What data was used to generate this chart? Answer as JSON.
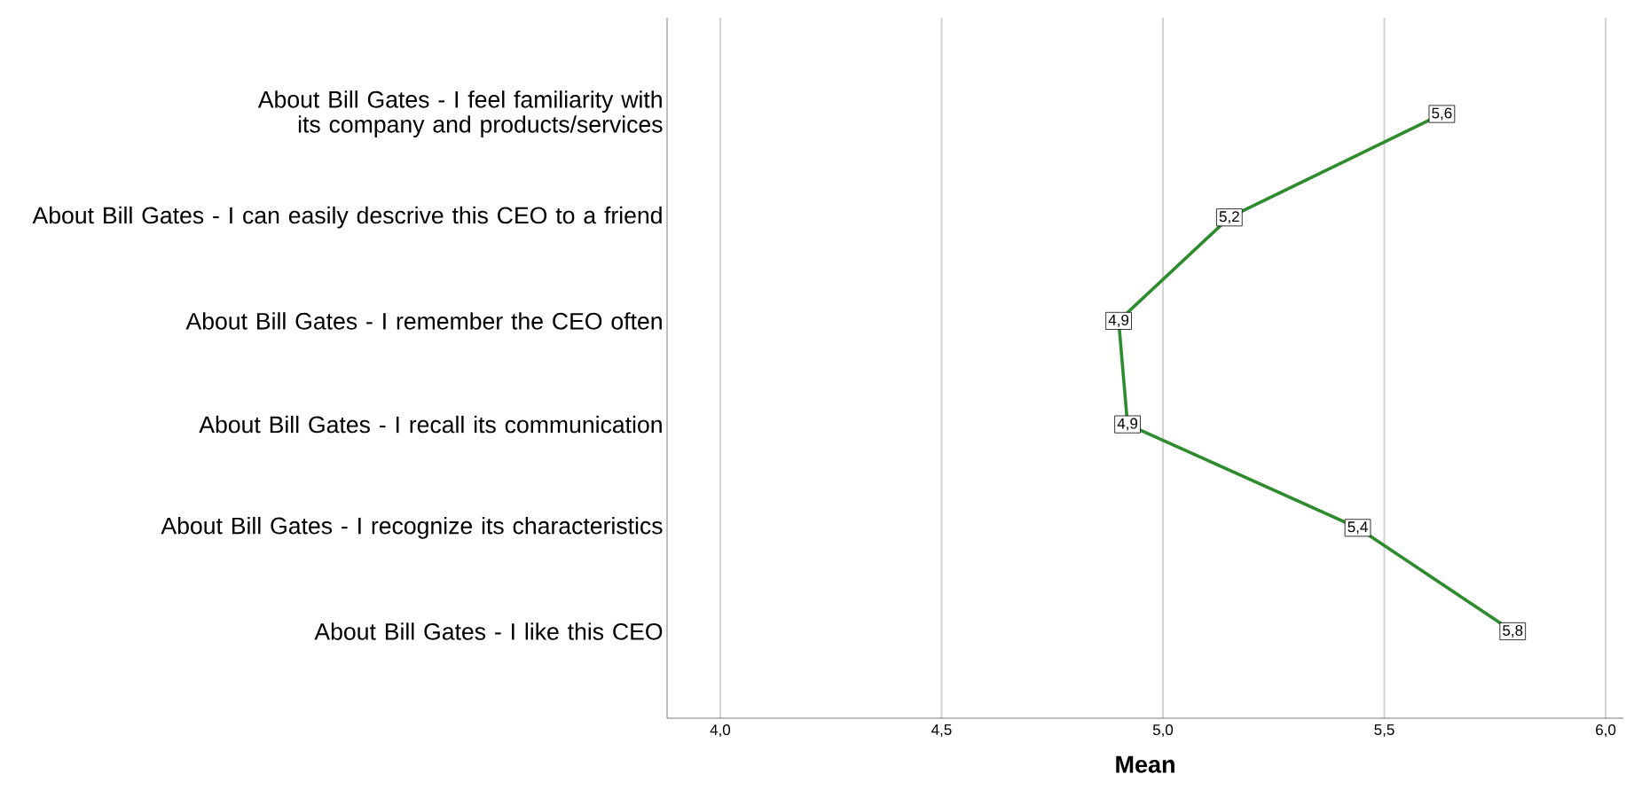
{
  "chart_data": {
    "type": "line",
    "orientation": "horizontal",
    "xlabel": "Mean",
    "categories": [
      "About Bill Gates - I feel familiarity with its company and products/services",
      "About Bill Gates - I can easily descrive this CEO to a friend",
      "About Bill Gates - I remember the CEO often",
      "About Bill Gates - I recall its communication",
      "About Bill Gates - I recognize its characteristics",
      "About Bill Gates - I like this CEO"
    ],
    "values": [
      5.63,
      5.15,
      4.9,
      4.92,
      5.44,
      5.79
    ],
    "value_labels": [
      "5,6",
      "5,2",
      "4,9",
      "4,9",
      "5,4",
      "5,8"
    ],
    "color": "#2e8b2e",
    "xlim": [
      3.88,
      6.04
    ],
    "xticks": [
      {
        "value": 4.0,
        "label": "4,0"
      },
      {
        "value": 4.5,
        "label": "4,5"
      },
      {
        "value": 5.0,
        "label": "5,0"
      },
      {
        "value": 5.5,
        "label": "5,5"
      },
      {
        "value": 6.0,
        "label": "6,0"
      }
    ],
    "grid": "x",
    "marker": "square",
    "line_style": "solid"
  }
}
